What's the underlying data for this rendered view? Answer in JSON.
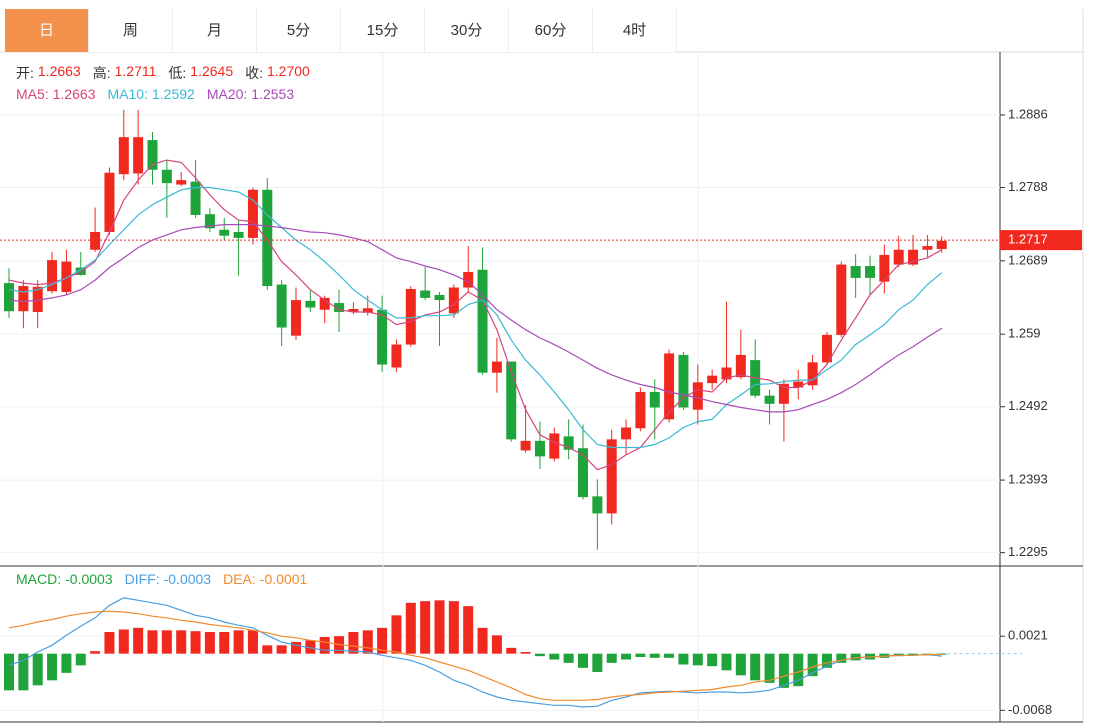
{
  "tabs": [
    "日",
    "周",
    "月",
    "5分",
    "15分",
    "30分",
    "60分",
    "4时"
  ],
  "active_tab": 0,
  "chart_data": [
    {
      "type": "candlestick",
      "summary": [
        {
          "label": "开:",
          "value": "1.2663"
        },
        {
          "label": "高:",
          "value": "1.2711"
        },
        {
          "label": "低:",
          "value": "1.2645"
        },
        {
          "label": "收:",
          "value": "1.2700"
        }
      ],
      "up_color": "#f0281e",
      "down_color": "#1fa33b",
      "open": [
        1.2659,
        1.2621,
        1.262,
        1.2648,
        1.2647,
        1.268,
        1.2704,
        1.2728,
        1.2806,
        1.2807,
        1.2852,
        1.2812,
        1.2792,
        1.2796,
        1.2752,
        1.2731,
        1.2728,
        1.272,
        1.2785,
        1.2657,
        1.2588,
        1.2635,
        1.2623,
        1.2632,
        1.262,
        1.2619,
        1.2623,
        1.2545,
        1.2576,
        1.2649,
        1.2643,
        1.2618,
        1.2653,
        1.2677,
        1.2538,
        1.2553,
        1.2433,
        1.2446,
        1.2422,
        1.2452,
        1.2436,
        1.2371,
        1.2348,
        1.2448,
        1.2463,
        1.2512,
        1.2475,
        1.2562,
        1.2488,
        1.2524,
        1.2529,
        1.2532,
        1.2555,
        1.2507,
        1.2496,
        1.2518,
        1.2521,
        1.2552,
        1.2589,
        1.2682,
        1.2682,
        1.2661,
        1.2684,
        1.2684,
        1.2704,
        1.2705
      ],
      "high": [
        1.2679,
        1.2663,
        1.2663,
        1.2701,
        1.2704,
        1.2701,
        1.2761,
        1.2815,
        1.2893,
        1.2893,
        1.2863,
        1.2825,
        1.2809,
        1.2825,
        1.276,
        1.2747,
        1.2744,
        1.2788,
        1.2801,
        1.2663,
        1.2653,
        1.265,
        1.2642,
        1.265,
        1.2633,
        1.2642,
        1.2642,
        1.2583,
        1.2655,
        1.2681,
        1.2647,
        1.2657,
        1.2709,
        1.2707,
        1.2585,
        1.2553,
        1.2494,
        1.2472,
        1.2464,
        1.2475,
        1.2468,
        1.2394,
        1.2461,
        1.2475,
        1.2518,
        1.2529,
        1.2569,
        1.2566,
        1.2549,
        1.2542,
        1.2634,
        1.2596,
        1.2583,
        1.2515,
        1.2529,
        1.2542,
        1.2562,
        1.2593,
        1.2688,
        1.2698,
        1.2696,
        1.2711,
        1.2723,
        1.2724,
        1.2724,
        1.2722
      ],
      "low": [
        1.2612,
        1.2598,
        1.2598,
        1.2645,
        1.2643,
        1.2669,
        1.2701,
        1.2724,
        1.2798,
        1.2792,
        1.2792,
        1.2747,
        1.279,
        1.2747,
        1.2728,
        1.2717,
        1.2669,
        1.2711,
        1.265,
        1.2574,
        1.2582,
        1.262,
        1.2605,
        1.2593,
        1.2617,
        1.2615,
        1.2539,
        1.2539,
        1.2573,
        1.2636,
        1.2574,
        1.2612,
        1.2647,
        1.2535,
        1.2511,
        1.2445,
        1.243,
        1.2408,
        1.2418,
        1.2421,
        1.2367,
        1.2299,
        1.2333,
        1.2427,
        1.2459,
        1.2448,
        1.2471,
        1.2488,
        1.2468,
        1.2515,
        1.2524,
        1.2529,
        1.2504,
        1.2468,
        1.2445,
        1.2502,
        1.2515,
        1.2549,
        1.2586,
        1.2639,
        1.2643,
        1.2645,
        1.268,
        1.2682,
        1.2694,
        1.27
      ],
      "close": [
        1.2621,
        1.2655,
        1.2654,
        1.269,
        1.2688,
        1.267,
        1.2728,
        1.2808,
        1.2856,
        1.2856,
        1.2812,
        1.2794,
        1.2798,
        1.2751,
        1.2733,
        1.2723,
        1.272,
        1.2785,
        1.2655,
        1.2599,
        1.2636,
        1.2626,
        1.2639,
        1.262,
        1.2624,
        1.2625,
        1.2549,
        1.2576,
        1.2651,
        1.2639,
        1.2636,
        1.2653,
        1.2674,
        1.2538,
        1.2553,
        1.2448,
        1.2446,
        1.2425,
        1.2456,
        1.2434,
        1.237,
        1.2348,
        1.2448,
        1.2464,
        1.2512,
        1.2491,
        1.2564,
        1.2491,
        1.2525,
        1.2534,
        1.2545,
        1.2562,
        1.2507,
        1.2496,
        1.2523,
        1.2526,
        1.2552,
        1.2589,
        1.2684,
        1.2666,
        1.2666,
        1.2697,
        1.2704,
        1.2704,
        1.2709,
        1.2716
      ],
      "series": [
        {
          "name": "MA5:",
          "value_label": "1.2663",
          "color": "#d6457d",
          "values": [
            1.2663,
            1.2659,
            1.2657,
            1.2659,
            1.2666,
            1.2674,
            1.2688,
            1.2728,
            1.2771,
            1.2798,
            1.2819,
            1.2825,
            1.2822,
            1.2801,
            1.2778,
            1.2758,
            1.2744,
            1.2742,
            1.2717,
            1.2688,
            1.267,
            1.265,
            1.2636,
            1.2623,
            1.262,
            1.262,
            1.2616,
            1.2603,
            1.2607,
            1.2616,
            1.262,
            1.263,
            1.2647,
            1.2636,
            1.2596,
            1.2539,
            1.2488,
            1.2454,
            1.2444,
            1.2437,
            1.2427,
            1.2407,
            1.2414,
            1.2427,
            1.2437,
            1.2461,
            1.2485,
            1.2504,
            1.2515,
            1.2512,
            1.2531,
            1.2535,
            1.2531,
            1.2528,
            1.2518,
            1.2518,
            1.2528,
            1.2549,
            1.2582,
            1.2612,
            1.2643,
            1.2663,
            1.2684,
            1.2688,
            1.2693,
            1.2704
          ]
        },
        {
          "name": "MA10:",
          "value_label": "1.2592",
          "color": "#3bb9d6",
          "values": [
            1.265,
            1.2647,
            1.265,
            1.2657,
            1.2666,
            1.2677,
            1.269,
            1.2711,
            1.2731,
            1.2751,
            1.2765,
            1.2775,
            1.2785,
            1.2788,
            1.2788,
            1.2785,
            1.2782,
            1.2771,
            1.2751,
            1.2734,
            1.2717,
            1.2704,
            1.2688,
            1.267,
            1.265,
            1.2636,
            1.2623,
            1.2612,
            1.2612,
            1.2615,
            1.2615,
            1.2616,
            1.263,
            1.2636,
            1.2616,
            1.2582,
            1.2555,
            1.2535,
            1.2512,
            1.2488,
            1.2461,
            1.2441,
            1.2437,
            1.2437,
            1.2437,
            1.2441,
            1.245,
            1.2464,
            1.2472,
            1.2475,
            1.2495,
            1.2508,
            1.2522,
            1.2523,
            1.2526,
            1.2528,
            1.2528,
            1.2542,
            1.2555,
            1.2576,
            1.2589,
            1.2603,
            1.2623,
            1.2636,
            1.2657,
            1.2673
          ]
        },
        {
          "name": "MA20:",
          "value_label": "1.2553",
          "color": "#a94bb8",
          "values": [
            1.2636,
            1.2634,
            1.2636,
            1.2639,
            1.2643,
            1.265,
            1.2663,
            1.268,
            1.2693,
            1.2707,
            1.2717,
            1.2724,
            1.2731,
            1.2734,
            1.2736,
            1.2738,
            1.2738,
            1.2738,
            1.2736,
            1.2734,
            1.2731,
            1.2728,
            1.2727,
            1.2724,
            1.272,
            1.2715,
            1.2704,
            1.2693,
            1.2688,
            1.2682,
            1.2677,
            1.267,
            1.2661,
            1.2643,
            1.2623,
            1.2609,
            1.2596,
            1.2585,
            1.2576,
            1.2566,
            1.2555,
            1.2544,
            1.2535,
            1.2528,
            1.2522,
            1.2518,
            1.2512,
            1.2508,
            1.2504,
            1.2499,
            1.2495,
            1.2491,
            1.2488,
            1.2485,
            1.2485,
            1.2488,
            1.2495,
            1.2502,
            1.2511,
            1.2522,
            1.2535,
            1.2549,
            1.2562,
            1.2573,
            1.2586,
            1.2598
          ]
        }
      ],
      "last_price": 1.2717,
      "last_price_color": "#f0281e",
      "ylim": [
        1.2277,
        1.2971
      ],
      "yticks": [
        1.2295,
        1.2393,
        1.2492,
        1.259,
        1.2689,
        1.2788,
        1.2886
      ],
      "grid": true
    },
    {
      "type": "macd",
      "histogram": {
        "name": "MACD:",
        "value_label": "-0.0003",
        "color": "#1fa33b",
        "up_color": "#f0281e",
        "down_color": "#1fa33b",
        "values": [
          -0.0044,
          -0.0044,
          -0.0038,
          -0.0032,
          -0.0023,
          -0.0014,
          0.0003,
          0.0026,
          0.0029,
          0.0031,
          0.0028,
          0.0028,
          0.0028,
          0.0027,
          0.0026,
          0.0026,
          0.0028,
          0.0028,
          0.001,
          0.001,
          0.0014,
          0.0016,
          0.002,
          0.0021,
          0.0026,
          0.0028,
          0.0031,
          0.0046,
          0.0061,
          0.0063,
          0.0064,
          0.0063,
          0.0057,
          0.0031,
          0.0022,
          0.0007,
          0.0002,
          -0.0003,
          -0.0007,
          -0.0011,
          -0.0017,
          -0.0022,
          -0.0011,
          -0.0007,
          -0.0004,
          -0.0005,
          -0.0005,
          -0.0013,
          -0.0014,
          -0.0015,
          -0.002,
          -0.0026,
          -0.0032,
          -0.0035,
          -0.0041,
          -0.0039,
          -0.0027,
          -0.0017,
          -0.0011,
          -0.0008,
          -0.0007,
          -0.0005,
          -0.0003,
          -0.0002,
          -0.0002,
          -0.0001
        ]
      },
      "series": [
        {
          "name": "DIFF:",
          "value_label": "-0.0003",
          "color": "#4a9ee0",
          "values": [
            -0.0014,
            -0.0008,
            0.0002,
            0.001,
            0.0022,
            0.0033,
            0.0043,
            0.0058,
            0.0067,
            0.0064,
            0.0061,
            0.0058,
            0.0052,
            0.0046,
            0.0043,
            0.0038,
            0.0034,
            0.0031,
            0.0022,
            0.0014,
            0.001,
            0.0007,
            0.0004,
            0.0004,
            0.0003,
            0.0002,
            -0.0002,
            -0.0005,
            -0.0008,
            -0.0014,
            -0.0022,
            -0.0032,
            -0.0038,
            -0.0046,
            -0.0052,
            -0.0056,
            -0.0058,
            -0.006,
            -0.0062,
            -0.0062,
            -0.0064,
            -0.0063,
            -0.0056,
            -0.0052,
            -0.0047,
            -0.0046,
            -0.0045,
            -0.0046,
            -0.0047,
            -0.0046,
            -0.0046,
            -0.0047,
            -0.0046,
            -0.0044,
            -0.0038,
            -0.0032,
            -0.0023,
            -0.0015,
            -0.0008,
            -0.0005,
            -0.0004,
            -0.0003,
            -0.0002,
            -0.0002,
            -0.0001,
            -0.0003
          ]
        },
        {
          "name": "DEA:",
          "value_label": "-0.0001",
          "color": "#f08a2c",
          "values": [
            0.0031,
            0.0034,
            0.0038,
            0.0041,
            0.0045,
            0.0048,
            0.005,
            0.0051,
            0.005,
            0.0048,
            0.0045,
            0.0043,
            0.004,
            0.0038,
            0.0035,
            0.0033,
            0.0031,
            0.0028,
            0.0025,
            0.0021,
            0.0019,
            0.0016,
            0.0014,
            0.0011,
            0.0009,
            0.0007,
            0.0004,
            0.0002,
            -0.0002,
            -0.0005,
            -0.001,
            -0.0015,
            -0.002,
            -0.0027,
            -0.0034,
            -0.0041,
            -0.0049,
            -0.0054,
            -0.0056,
            -0.0056,
            -0.0056,
            -0.0055,
            -0.0052,
            -0.005,
            -0.0049,
            -0.0047,
            -0.0046,
            -0.0045,
            -0.0044,
            -0.0043,
            -0.004,
            -0.0038,
            -0.0034,
            -0.0032,
            -0.0027,
            -0.0022,
            -0.0016,
            -0.0011,
            -0.0008,
            -0.0005,
            -0.0004,
            -0.0003,
            -0.0002,
            -0.0002,
            -0.0001,
            -0.0001
          ]
        }
      ],
      "ylim": [
        -0.0082,
        0.0104
      ],
      "yticks": [
        -0.0068,
        0.0021
      ],
      "grid": true
    }
  ]
}
